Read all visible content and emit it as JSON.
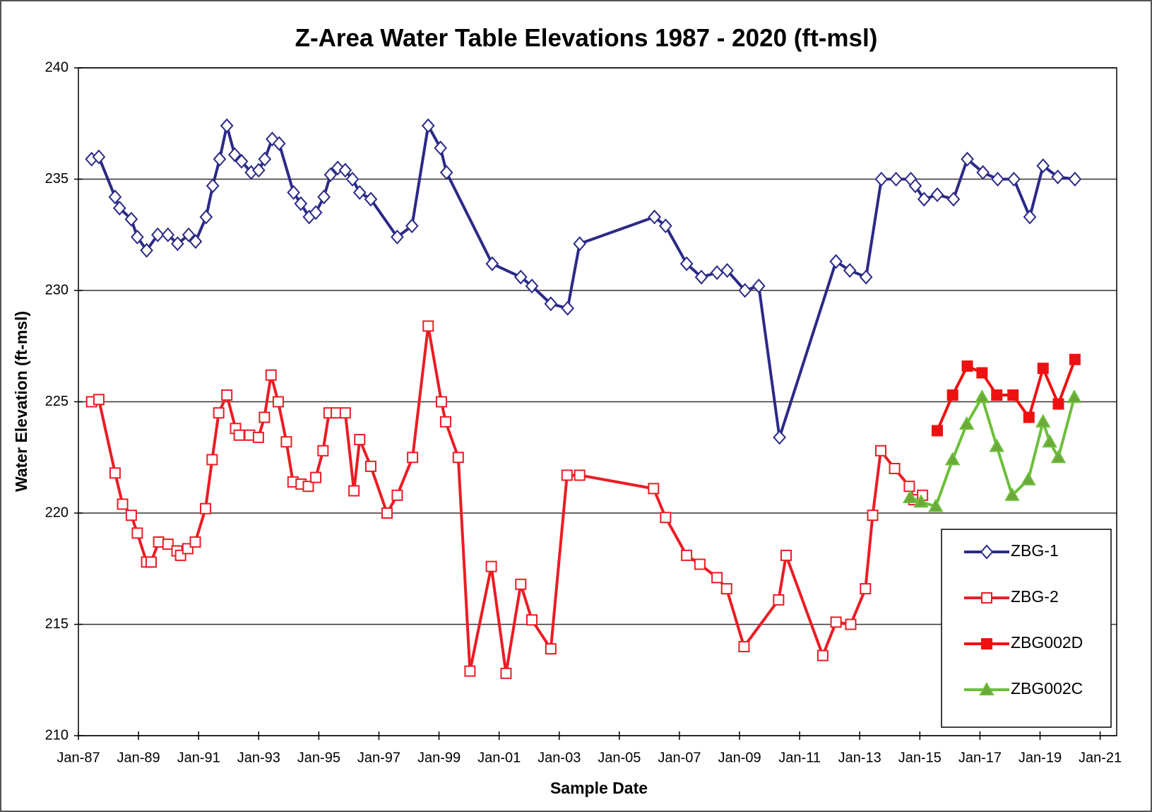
{
  "chart_data": {
    "type": "line",
    "title": "Z-Area Water Table Elevations 1987 - 2020  (ft-msl)",
    "x_label": "Sample Date",
    "y_label": "Water Elevation  (ft-msl)",
    "xlim": [
      1987,
      2021.55
    ],
    "xticks": [
      {
        "value": 1987,
        "label": "Jan-87"
      },
      {
        "value": 1989,
        "label": "Jan-89"
      },
      {
        "value": 1991,
        "label": "Jan-91"
      },
      {
        "value": 1993,
        "label": "Jan-93"
      },
      {
        "value": 1995,
        "label": "Jan-95"
      },
      {
        "value": 1997,
        "label": "Jan-97"
      },
      {
        "value": 1999,
        "label": "Jan-99"
      },
      {
        "value": 2001,
        "label": "Jan-01"
      },
      {
        "value": 2003,
        "label": "Jan-03"
      },
      {
        "value": 2005,
        "label": "Jan-05"
      },
      {
        "value": 2007,
        "label": "Jan-07"
      },
      {
        "value": 2009,
        "label": "Jan-09"
      },
      {
        "value": 2011,
        "label": "Jan-11"
      },
      {
        "value": 2013,
        "label": "Jan-13"
      },
      {
        "value": 2015,
        "label": "Jan-15"
      },
      {
        "value": 2017,
        "label": "Jan-17"
      },
      {
        "value": 2019,
        "label": "Jan-19"
      },
      {
        "value": 2021,
        "label": "Jan-21"
      }
    ],
    "ylim": [
      210,
      240
    ],
    "yticks": [
      210,
      215,
      220,
      225,
      230,
      235,
      240
    ],
    "grid": true,
    "legend": "lower right",
    "series": [
      {
        "name": "ZBG-1",
        "color": "#2b2a87",
        "marker": "diamond",
        "filled": false,
        "x": [
          1987.44,
          1987.68,
          1988.22,
          1988.37,
          1988.76,
          1988.96,
          1989.27,
          1989.64,
          1989.98,
          1990.3,
          1990.67,
          1990.9,
          1991.25,
          1991.47,
          1991.7,
          1991.94,
          1992.2,
          1992.43,
          1992.75,
          1993.0,
          1993.2,
          1993.45,
          1993.68,
          1994.16,
          1994.4,
          1994.68,
          1994.9,
          1995.17,
          1995.39,
          1995.63,
          1995.88,
          1996.12,
          1996.36,
          1996.73,
          1997.61,
          1998.1,
          1998.64,
          1999.05,
          1999.25,
          2000.77,
          2001.72,
          2002.09,
          2002.72,
          2003.28,
          2003.68,
          2006.17,
          2006.54,
          2007.24,
          2007.73,
          2008.25,
          2008.59,
          2009.18,
          2009.64,
          2010.33,
          2012.21,
          2012.67,
          2013.21,
          2013.72,
          2014.21,
          2014.7,
          2014.85,
          2015.14,
          2015.58,
          2016.12,
          2016.58,
          2017.1,
          2017.59,
          2018.13,
          2018.66,
          2019.1,
          2019.59,
          2020.16
        ],
        "values": [
          235.9,
          236.0,
          234.2,
          233.7,
          233.2,
          232.4,
          231.8,
          232.5,
          232.5,
          232.1,
          232.5,
          232.2,
          233.3,
          234.7,
          235.9,
          237.4,
          236.1,
          235.8,
          235.3,
          235.4,
          235.9,
          236.8,
          236.6,
          234.4,
          233.9,
          233.3,
          233.5,
          234.2,
          235.2,
          235.5,
          235.4,
          235.0,
          234.4,
          234.1,
          232.4,
          232.9,
          237.4,
          236.4,
          235.3,
          231.2,
          230.6,
          230.2,
          229.4,
          229.2,
          232.1,
          233.3,
          232.9,
          231.2,
          230.6,
          230.8,
          230.9,
          230.0,
          230.2,
          223.4,
          231.3,
          230.9,
          230.6,
          235.0,
          235.0,
          235.0,
          234.7,
          234.1,
          234.3,
          234.1,
          235.9,
          235.3,
          235.0,
          235.0,
          233.3,
          235.6,
          235.1,
          235.0
        ]
      },
      {
        "name": "ZBG-2",
        "color": "#ec1c24",
        "marker": "square",
        "filled": false,
        "x": [
          1987.44,
          1987.68,
          1988.22,
          1988.47,
          1988.76,
          1988.96,
          1989.27,
          1989.42,
          1989.67,
          1989.98,
          1990.28,
          1990.4,
          1990.64,
          1990.89,
          1991.23,
          1991.45,
          1991.67,
          1991.94,
          1992.23,
          1992.35,
          1992.7,
          1992.99,
          1993.19,
          1993.41,
          1993.65,
          1993.92,
          1994.14,
          1994.41,
          1994.65,
          1994.9,
          1995.14,
          1995.34,
          1995.58,
          1995.88,
          1996.17,
          1996.36,
          1996.73,
          1997.27,
          1997.61,
          1998.12,
          1998.64,
          1999.08,
          1999.22,
          1999.64,
          2000.03,
          2000.74,
          2001.23,
          2001.72,
          2002.09,
          2002.72,
          2003.26,
          2003.68,
          2006.14,
          2006.54,
          2007.24,
          2007.68,
          2008.25,
          2008.57,
          2009.15,
          2010.3,
          2010.55,
          2011.77,
          2012.21,
          2012.7,
          2013.19,
          2013.43,
          2013.7,
          2014.16,
          2014.65,
          2014.8,
          2015.09
        ],
        "values": [
          225.0,
          225.1,
          221.8,
          220.4,
          219.9,
          219.1,
          217.8,
          217.8,
          218.7,
          218.6,
          218.3,
          218.1,
          218.4,
          218.7,
          220.2,
          222.4,
          224.5,
          225.3,
          223.8,
          223.5,
          223.5,
          223.4,
          224.3,
          226.2,
          225.0,
          223.2,
          221.4,
          221.3,
          221.2,
          221.6,
          222.8,
          224.5,
          224.5,
          224.5,
          221.0,
          223.3,
          222.1,
          220.0,
          220.8,
          222.5,
          228.4,
          225.0,
          224.1,
          222.5,
          212.9,
          217.6,
          212.8,
          216.8,
          215.2,
          213.9,
          221.7,
          221.7,
          221.1,
          219.8,
          218.1,
          217.7,
          217.1,
          216.6,
          214.0,
          216.1,
          218.1,
          213.6,
          215.1,
          215.0,
          216.6,
          219.9,
          222.8,
          222.0,
          221.2,
          220.6,
          220.8
        ]
      },
      {
        "name": "ZBG002D",
        "color": "#ee1111",
        "marker": "square",
        "filled": true,
        "x": [
          2015.58,
          2016.09,
          2016.58,
          2017.07,
          2017.56,
          2018.1,
          2018.63,
          2019.1,
          2019.61,
          2020.16
        ],
        "values": [
          223.7,
          225.3,
          226.6,
          226.3,
          225.3,
          225.3,
          224.3,
          226.5,
          224.9,
          226.9
        ]
      },
      {
        "name": "ZBG002C",
        "color": "#6cbf3a",
        "marker": "triangle",
        "filled": true,
        "x": [
          2014.68,
          2015.04,
          2015.53,
          2016.09,
          2016.56,
          2017.07,
          2017.56,
          2018.07,
          2018.61,
          2019.1,
          2019.32,
          2019.61,
          2020.14
        ],
        "values": [
          220.7,
          220.5,
          220.3,
          222.4,
          224.0,
          225.2,
          223.0,
          220.8,
          221.5,
          224.1,
          223.2,
          222.5,
          225.2
        ]
      }
    ]
  }
}
